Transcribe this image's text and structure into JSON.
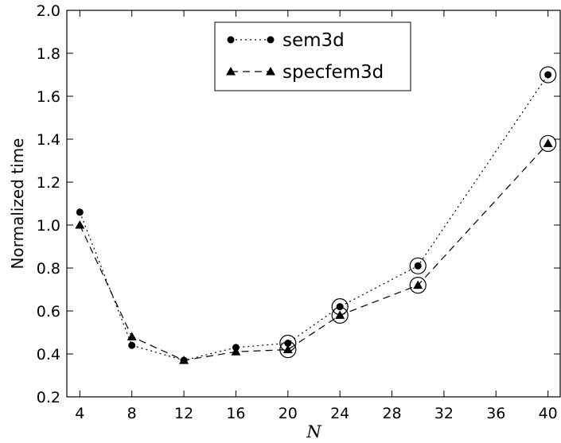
{
  "chart_data": {
    "type": "line",
    "xlabel": "N",
    "ylabel": "Normalized time",
    "xticks": [
      4,
      8,
      12,
      16,
      20,
      24,
      28,
      32,
      36,
      40
    ],
    "yticks": [
      0.2,
      0.4,
      0.6,
      0.8,
      1.0,
      1.2,
      1.4,
      1.6,
      1.8,
      2.0
    ],
    "ytick_labels": [
      "0.2",
      "0.4",
      "0.6",
      "0.8",
      "1.0",
      "1.2",
      "1.4",
      "1.6",
      "1.8",
      "2.0"
    ],
    "xlim": [
      3,
      41
    ],
    "ylim": [
      0.2,
      2.0
    ],
    "grid": false,
    "legend_position": "top-center",
    "series": [
      {
        "name": "sem3d",
        "marker": "circle",
        "line_style": "dotted",
        "color": "#000000",
        "x": [
          4,
          8,
          12,
          16,
          20,
          24,
          30,
          40
        ],
        "y": [
          1.06,
          0.44,
          0.37,
          0.43,
          0.45,
          0.62,
          0.81,
          1.7
        ]
      },
      {
        "name": "specfem3d",
        "marker": "triangle",
        "line_style": "dashed",
        "color": "#000000",
        "x": [
          4,
          8,
          12,
          16,
          20,
          24,
          30,
          40
        ],
        "y": [
          1.0,
          0.48,
          0.37,
          0.41,
          0.42,
          0.58,
          0.72,
          1.38
        ]
      }
    ],
    "circled_points": [
      {
        "x": 20,
        "y": 0.45
      },
      {
        "x": 20,
        "y": 0.42
      },
      {
        "x": 24,
        "y": 0.62
      },
      {
        "x": 24,
        "y": 0.58
      },
      {
        "x": 30,
        "y": 0.81
      },
      {
        "x": 30,
        "y": 0.72
      },
      {
        "x": 40,
        "y": 1.7
      },
      {
        "x": 40,
        "y": 1.38
      }
    ]
  }
}
